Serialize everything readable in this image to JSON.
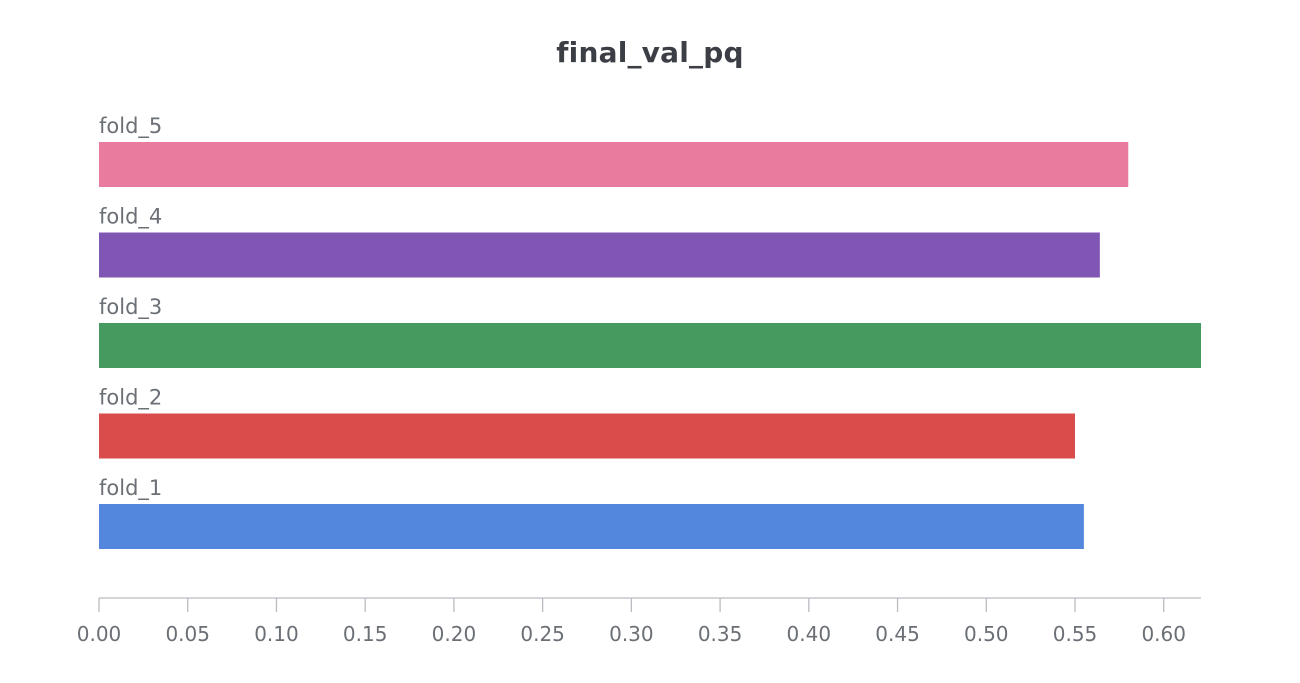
{
  "chart_data": {
    "type": "bar",
    "orientation": "horizontal",
    "title": "final_val_pq",
    "xlabel": "",
    "ylabel": "",
    "categories": [
      "fold_5",
      "fold_4",
      "fold_3",
      "fold_2",
      "fold_1"
    ],
    "values": [
      0.58,
      0.564,
      0.621,
      0.55,
      0.555
    ],
    "colors": [
      "#e87b9e",
      "#7f56b3",
      "#479a5f",
      "#da4c4c",
      "#5387dd"
    ],
    "xlim": [
      0,
      0.621
    ],
    "xticks": [
      0,
      0.05,
      0.1,
      0.15,
      0.2,
      0.25,
      0.3,
      0.35,
      0.4,
      0.45,
      0.5,
      0.55,
      0.6
    ],
    "xtick_labels": [
      "0.00",
      "0.05",
      "0.10",
      "0.15",
      "0.20",
      "0.25",
      "0.30",
      "0.35",
      "0.40",
      "0.45",
      "0.50",
      "0.55",
      "0.60"
    ],
    "grid": false,
    "legend": "none"
  }
}
